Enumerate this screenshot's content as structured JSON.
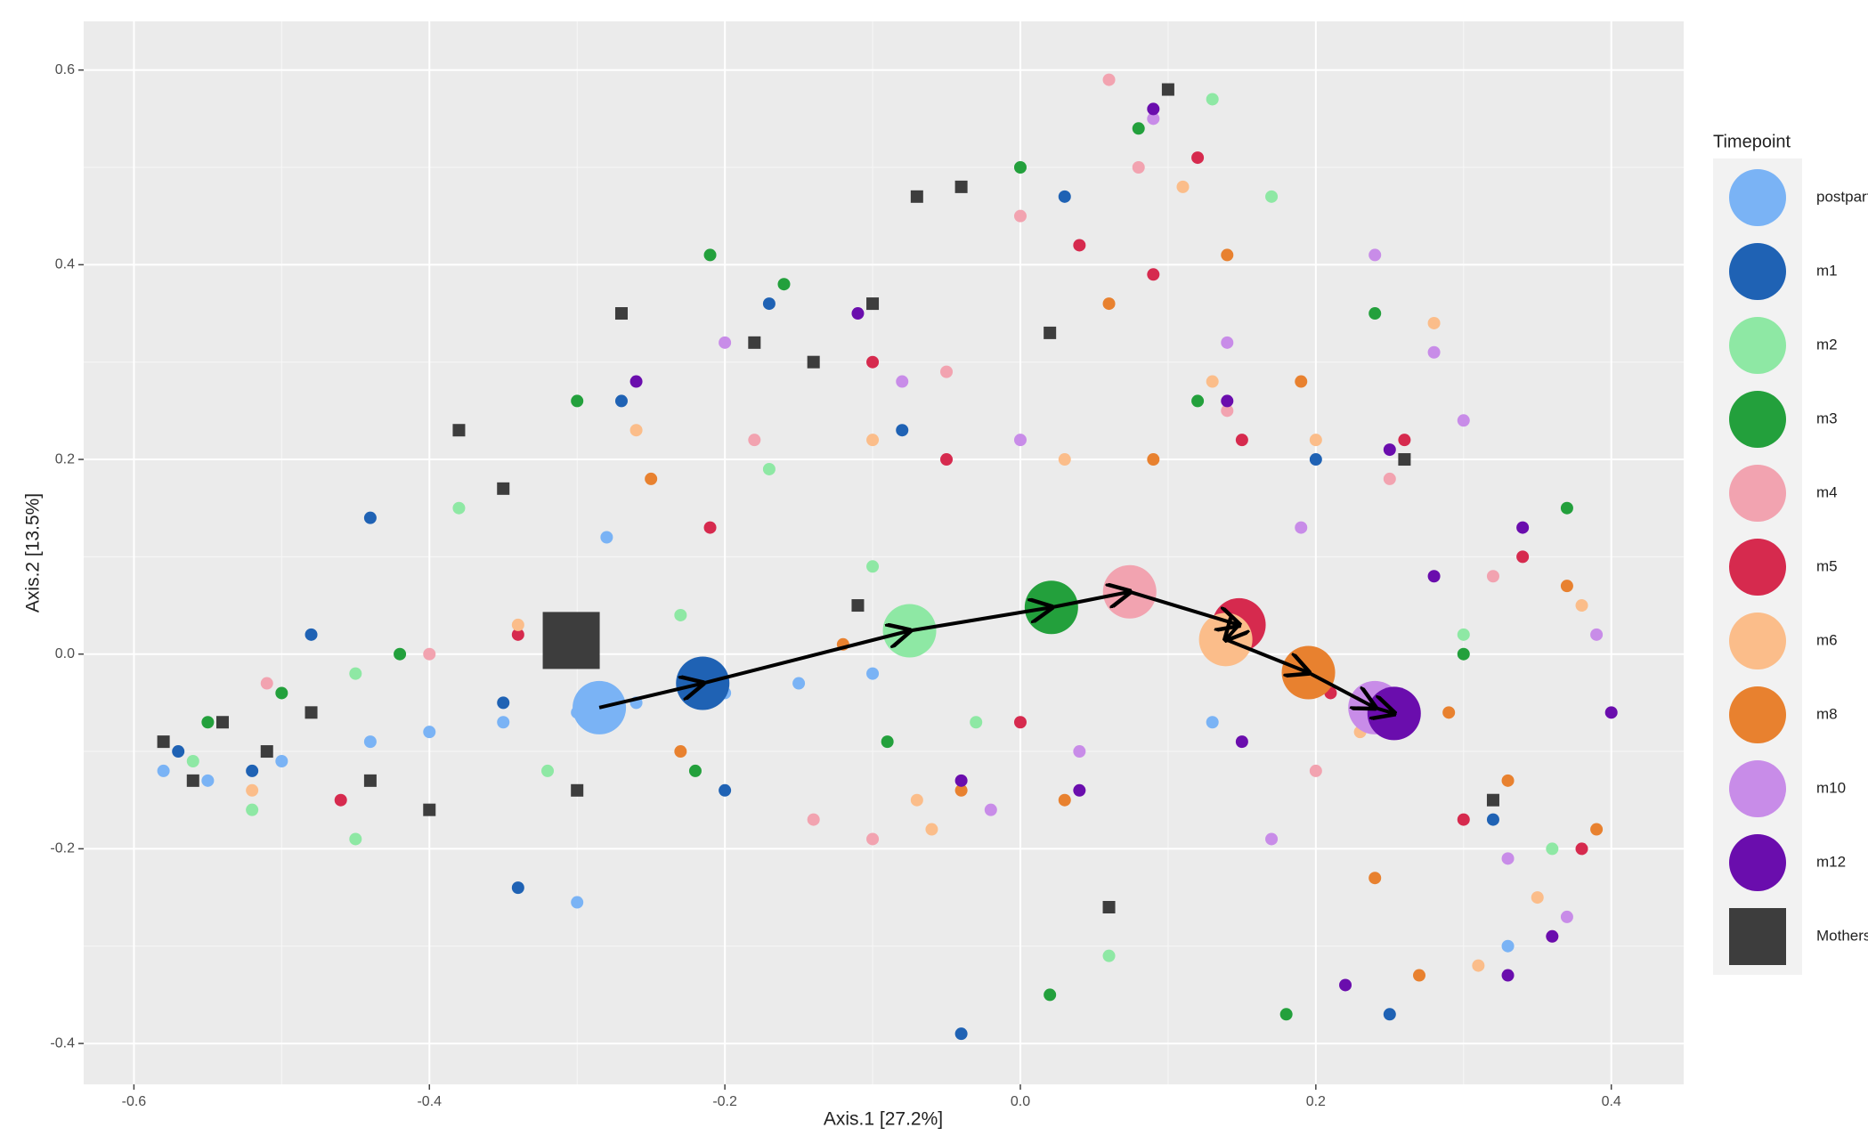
{
  "chart_data": {
    "type": "scatter",
    "xlabel": "Axis.1  [27.2%]",
    "ylabel": "Axis.2  [13.5%]",
    "legend_title": "Timepoint",
    "xlim": [
      -0.634,
      0.449
    ],
    "ylim": [
      -0.442,
      0.65
    ],
    "xticks": [
      -0.6,
      -0.4,
      -0.2,
      {
        "value": 0,
        "label": "0.0"
      },
      0.2,
      0.4
    ],
    "yticks": [
      -0.4,
      -0.2,
      {
        "value": 0,
        "label": "0.0"
      },
      0.2,
      0.4,
      0.6
    ],
    "grid": true,
    "legend": "right",
    "series": [
      {
        "name": "postpartum",
        "color": "#7ab3f5",
        "shape": "circle",
        "centroid_x": -0.285,
        "centroid_y": -0.055,
        "x": [
          -0.58,
          -0.55,
          -0.5,
          -0.44,
          -0.4,
          -0.35,
          -0.3,
          -0.26,
          -0.2,
          -0.15,
          -0.1,
          0.13,
          -0.3,
          0.33,
          -0.28
        ],
        "y": [
          -0.12,
          -0.13,
          -0.11,
          -0.09,
          -0.08,
          -0.07,
          -0.06,
          -0.05,
          -0.04,
          -0.03,
          -0.02,
          -0.07,
          -0.255,
          -0.3,
          0.12
        ]
      },
      {
        "name": "m1",
        "color": "#1f62b4",
        "shape": "circle",
        "centroid_x": -0.215,
        "centroid_y": -0.03,
        "x": [
          -0.57,
          -0.52,
          -0.48,
          -0.44,
          -0.35,
          -0.27,
          -0.2,
          -0.17,
          -0.08,
          -0.04,
          0.03,
          0.2,
          0.25,
          0.32,
          -0.34
        ],
        "y": [
          -0.1,
          -0.12,
          0.02,
          0.14,
          -0.05,
          0.26,
          -0.14,
          0.36,
          0.23,
          -0.39,
          0.47,
          0.2,
          -0.37,
          -0.17,
          -0.24
        ]
      },
      {
        "name": "m2",
        "color": "#8ee8a4",
        "shape": "circle",
        "centroid_x": -0.075,
        "centroid_y": 0.024,
        "x": [
          -0.56,
          -0.52,
          -0.45,
          -0.38,
          -0.32,
          -0.23,
          -0.17,
          -0.1,
          -0.03,
          0.06,
          0.13,
          0.17,
          0.3,
          0.36,
          -0.45
        ],
        "y": [
          -0.11,
          -0.16,
          -0.02,
          0.15,
          -0.12,
          0.04,
          0.19,
          0.09,
          -0.07,
          -0.31,
          0.57,
          0.47,
          0.02,
          -0.2,
          -0.19
        ]
      },
      {
        "name": "m3",
        "color": "#23a03c",
        "shape": "circle",
        "centroid_x": 0.021,
        "centroid_y": 0.048,
        "x": [
          -0.55,
          -0.5,
          -0.42,
          -0.3,
          -0.22,
          -0.16,
          -0.09,
          0.0,
          0.02,
          0.08,
          0.12,
          0.18,
          0.24,
          0.3,
          0.37,
          -0.21
        ],
        "y": [
          -0.07,
          -0.04,
          0.0,
          0.26,
          -0.12,
          0.38,
          -0.09,
          0.5,
          -0.35,
          0.54,
          0.26,
          -0.37,
          0.35,
          0.0,
          0.15,
          0.41
        ]
      },
      {
        "name": "m4",
        "color": "#f2a3b0",
        "shape": "circle",
        "centroid_x": 0.074,
        "centroid_y": 0.064,
        "x": [
          -0.51,
          -0.4,
          -0.3,
          -0.18,
          -0.1,
          -0.05,
          0.0,
          0.08,
          0.14,
          0.2,
          0.25,
          0.32,
          0.36,
          -0.14,
          0.06
        ],
        "y": [
          -0.03,
          0.0,
          0.03,
          0.22,
          -0.19,
          0.29,
          0.45,
          0.5,
          0.25,
          -0.12,
          0.18,
          0.08,
          -0.29,
          -0.17,
          0.59
        ]
      },
      {
        "name": "m5",
        "color": "#d62a4e",
        "shape": "circle",
        "centroid_x": 0.148,
        "centroid_y": 0.03,
        "x": [
          -0.46,
          -0.34,
          -0.21,
          -0.1,
          -0.05,
          0.04,
          0.09,
          0.15,
          0.21,
          0.26,
          0.3,
          0.34,
          0.38,
          0.0,
          0.12
        ],
        "y": [
          -0.15,
          0.02,
          0.13,
          0.3,
          0.2,
          0.42,
          0.39,
          0.22,
          -0.04,
          0.22,
          -0.17,
          0.1,
          -0.2,
          -0.07,
          0.51
        ]
      },
      {
        "name": "m6",
        "color": "#fbbd8a",
        "shape": "circle",
        "centroid_x": 0.139,
        "centroid_y": 0.015,
        "x": [
          -0.52,
          -0.34,
          -0.26,
          -0.1,
          -0.06,
          0.03,
          0.11,
          0.13,
          0.23,
          0.28,
          0.31,
          0.35,
          0.38,
          -0.07,
          0.2
        ],
        "y": [
          -0.14,
          0.03,
          0.23,
          0.22,
          -0.18,
          0.2,
          0.48,
          0.28,
          -0.08,
          0.34,
          -0.32,
          -0.25,
          0.05,
          -0.15,
          0.22
        ]
      },
      {
        "name": "m8",
        "color": "#e8812f",
        "shape": "circle",
        "centroid_x": 0.195,
        "centroid_y": -0.019,
        "x": [
          -0.25,
          -0.12,
          -0.04,
          0.03,
          0.06,
          0.09,
          0.14,
          0.19,
          0.24,
          0.29,
          0.33,
          0.37,
          0.39,
          -0.23,
          0.27
        ],
        "y": [
          0.18,
          0.01,
          -0.14,
          -0.15,
          0.36,
          0.2,
          0.41,
          0.28,
          -0.23,
          -0.06,
          -0.13,
          0.07,
          -0.18,
          -0.1,
          -0.33
        ]
      },
      {
        "name": "m10",
        "color": "#c88ce8",
        "shape": "circle",
        "centroid_x": 0.24,
        "centroid_y": -0.055,
        "x": [
          -0.2,
          -0.08,
          0.0,
          0.04,
          0.09,
          0.14,
          0.19,
          0.24,
          0.28,
          0.33,
          0.37,
          0.39,
          -0.02,
          0.3,
          0.17
        ],
        "y": [
          0.32,
          0.28,
          0.22,
          -0.1,
          0.55,
          0.32,
          0.13,
          0.41,
          0.31,
          -0.21,
          -0.27,
          0.02,
          -0.16,
          0.24,
          -0.19
        ]
      },
      {
        "name": "m12",
        "color": "#6a0dad",
        "shape": "circle",
        "centroid_x": 0.253,
        "centroid_y": -0.061,
        "x": [
          -0.26,
          -0.11,
          -0.04,
          0.04,
          0.09,
          0.14,
          0.2,
          0.25,
          0.28,
          0.33,
          0.36,
          0.4,
          0.34,
          0.15,
          0.22
        ],
        "y": [
          0.28,
          0.35,
          -0.13,
          -0.14,
          0.56,
          0.26,
          -0.02,
          0.21,
          0.08,
          -0.33,
          -0.29,
          -0.06,
          0.13,
          -0.09,
          -0.34
        ]
      },
      {
        "name": "Mothers",
        "color": "#3d3d3d",
        "shape": "square",
        "centroid_x": -0.304,
        "centroid_y": 0.014,
        "x": [
          -0.58,
          -0.56,
          -0.54,
          -0.51,
          -0.48,
          -0.44,
          -0.4,
          -0.38,
          -0.35,
          -0.3,
          -0.27,
          -0.22,
          -0.18,
          -0.14,
          -0.1,
          -0.07,
          0.02,
          0.1,
          0.26,
          0.32,
          -0.04,
          -0.11,
          0.06
        ],
        "y": [
          -0.09,
          -0.13,
          -0.07,
          -0.1,
          -0.06,
          -0.13,
          -0.16,
          0.23,
          0.17,
          -0.14,
          0.35,
          -0.03,
          0.32,
          0.3,
          0.36,
          0.47,
          0.33,
          0.58,
          0.2,
          -0.15,
          0.48,
          0.05,
          -0.26
        ]
      }
    ]
  }
}
